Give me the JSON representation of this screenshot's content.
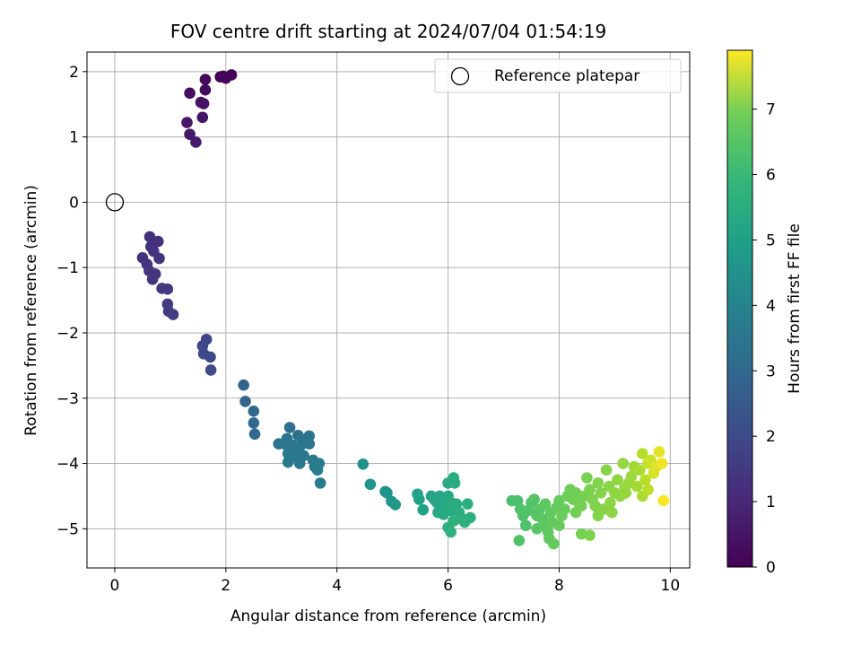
{
  "chart_data": {
    "type": "scatter",
    "title": "FOV centre drift starting at 2024/07/04 01:54:19",
    "xlabel": "Angular distance from reference (arcmin)",
    "ylabel": "Rotation from reference (arcmin)",
    "xlim": [
      -0.5,
      10.35
    ],
    "ylim": [
      -5.6,
      2.3
    ],
    "xticks": [
      0,
      2,
      4,
      6,
      8,
      10
    ],
    "yticks": [
      -5,
      -4,
      -3,
      -2,
      -1,
      0,
      1,
      2
    ],
    "grid": true,
    "legend": {
      "placement": "top-right",
      "entries": [
        "Reference platepar"
      ]
    },
    "reference_point": {
      "name": "Reference platepar",
      "x": 0,
      "y": 0
    },
    "colorbar": {
      "label": "Hours from first FF file",
      "range": [
        0,
        7.9
      ],
      "ticks": [
        0,
        1,
        2,
        3,
        4,
        5,
        6,
        7
      ],
      "colormap": "viridis"
    },
    "series": [
      {
        "color_by": "hours",
        "points": [
          {
            "x": 1.9,
            "y": 1.92,
            "c": 0.02
          },
          {
            "x": 2.0,
            "y": 1.9,
            "c": 0.05
          },
          {
            "x": 2.1,
            "y": 1.95,
            "c": 0.08
          },
          {
            "x": 1.95,
            "y": 1.93,
            "c": 0.1
          },
          {
            "x": 1.63,
            "y": 1.88,
            "c": 0.2
          },
          {
            "x": 1.63,
            "y": 1.72,
            "c": 0.25
          },
          {
            "x": 1.35,
            "y": 1.67,
            "c": 0.3
          },
          {
            "x": 1.55,
            "y": 1.53,
            "c": 0.35
          },
          {
            "x": 1.6,
            "y": 1.51,
            "c": 0.38
          },
          {
            "x": 1.58,
            "y": 1.3,
            "c": 0.42
          },
          {
            "x": 1.3,
            "y": 1.22,
            "c": 0.48
          },
          {
            "x": 1.35,
            "y": 1.04,
            "c": 0.52
          },
          {
            "x": 1.46,
            "y": 0.92,
            "c": 0.58
          },
          {
            "x": 0.63,
            "y": -0.53,
            "c": 1.1
          },
          {
            "x": 0.78,
            "y": -0.6,
            "c": 1.12
          },
          {
            "x": 0.65,
            "y": -0.68,
            "c": 1.14
          },
          {
            "x": 0.7,
            "y": -0.75,
            "c": 1.16
          },
          {
            "x": 0.5,
            "y": -0.85,
            "c": 1.18
          },
          {
            "x": 0.8,
            "y": -0.86,
            "c": 1.2
          },
          {
            "x": 0.58,
            "y": -0.95,
            "c": 1.22
          },
          {
            "x": 0.62,
            "y": -1.05,
            "c": 1.24
          },
          {
            "x": 0.73,
            "y": -1.1,
            "c": 1.26
          },
          {
            "x": 0.68,
            "y": -1.18,
            "c": 1.28
          },
          {
            "x": 0.85,
            "y": -1.32,
            "c": 1.3
          },
          {
            "x": 0.95,
            "y": -1.33,
            "c": 1.32
          },
          {
            "x": 0.95,
            "y": -1.56,
            "c": 1.35
          },
          {
            "x": 0.97,
            "y": -1.67,
            "c": 1.38
          },
          {
            "x": 1.05,
            "y": -1.72,
            "c": 1.4
          },
          {
            "x": 1.65,
            "y": -2.1,
            "c": 1.65
          },
          {
            "x": 1.58,
            "y": -2.2,
            "c": 1.7
          },
          {
            "x": 1.6,
            "y": -2.32,
            "c": 1.72
          },
          {
            "x": 1.72,
            "y": -2.37,
            "c": 1.75
          },
          {
            "x": 1.73,
            "y": -2.57,
            "c": 1.8
          },
          {
            "x": 2.32,
            "y": -2.8,
            "c": 2.5
          },
          {
            "x": 2.35,
            "y": -3.05,
            "c": 2.55
          },
          {
            "x": 2.5,
            "y": -3.2,
            "c": 2.6
          },
          {
            "x": 2.5,
            "y": -3.38,
            "c": 2.65
          },
          {
            "x": 2.52,
            "y": -3.55,
            "c": 2.7
          },
          {
            "x": 3.15,
            "y": -3.45,
            "c": 2.9
          },
          {
            "x": 3.3,
            "y": -3.57,
            "c": 2.95
          },
          {
            "x": 3.5,
            "y": -3.58,
            "c": 3.0
          },
          {
            "x": 3.45,
            "y": -3.63,
            "c": 3.0
          },
          {
            "x": 3.1,
            "y": -3.62,
            "c": 3.02
          },
          {
            "x": 2.95,
            "y": -3.7,
            "c": 3.05
          },
          {
            "x": 3.05,
            "y": -3.7,
            "c": 3.06
          },
          {
            "x": 3.2,
            "y": -3.72,
            "c": 3.08
          },
          {
            "x": 3.35,
            "y": -3.72,
            "c": 3.1
          },
          {
            "x": 3.5,
            "y": -3.7,
            "c": 3.1
          },
          {
            "x": 3.3,
            "y": -3.8,
            "c": 3.12
          },
          {
            "x": 3.12,
            "y": -3.85,
            "c": 3.14
          },
          {
            "x": 3.25,
            "y": -3.9,
            "c": 3.16
          },
          {
            "x": 3.4,
            "y": -3.88,
            "c": 3.18
          },
          {
            "x": 3.57,
            "y": -3.95,
            "c": 3.2
          },
          {
            "x": 3.12,
            "y": -3.98,
            "c": 3.22
          },
          {
            "x": 3.33,
            "y": -4.0,
            "c": 3.24
          },
          {
            "x": 3.6,
            "y": -4.05,
            "c": 3.26
          },
          {
            "x": 3.65,
            "y": -4.1,
            "c": 3.28
          },
          {
            "x": 3.68,
            "y": -4.0,
            "c": 3.3
          },
          {
            "x": 3.7,
            "y": -4.3,
            "c": 3.32
          },
          {
            "x": 4.47,
            "y": -4.01,
            "c": 4.0
          },
          {
            "x": 4.6,
            "y": -4.32,
            "c": 4.05
          },
          {
            "x": 4.87,
            "y": -4.43,
            "c": 4.1
          },
          {
            "x": 4.9,
            "y": -4.45,
            "c": 4.12
          },
          {
            "x": 4.98,
            "y": -4.58,
            "c": 4.15
          },
          {
            "x": 5.05,
            "y": -4.63,
            "c": 4.18
          },
          {
            "x": 5.45,
            "y": -4.47,
            "c": 4.5
          },
          {
            "x": 5.48,
            "y": -4.55,
            "c": 4.52
          },
          {
            "x": 5.55,
            "y": -4.71,
            "c": 4.55
          },
          {
            "x": 5.7,
            "y": -4.5,
            "c": 4.6
          },
          {
            "x": 5.75,
            "y": -4.55,
            "c": 4.62
          },
          {
            "x": 5.8,
            "y": -4.6,
            "c": 4.64
          },
          {
            "x": 5.85,
            "y": -4.5,
            "c": 4.66
          },
          {
            "x": 5.9,
            "y": -4.65,
            "c": 4.68
          },
          {
            "x": 5.95,
            "y": -4.55,
            "c": 4.7
          },
          {
            "x": 6.0,
            "y": -4.5,
            "c": 4.72
          },
          {
            "x": 5.82,
            "y": -4.75,
            "c": 4.74
          },
          {
            "x": 5.92,
            "y": -4.78,
            "c": 4.76
          },
          {
            "x": 6.05,
            "y": -4.72,
            "c": 4.78
          },
          {
            "x": 6.0,
            "y": -4.3,
            "c": 4.8
          },
          {
            "x": 6.1,
            "y": -4.22,
            "c": 4.82
          },
          {
            "x": 6.12,
            "y": -4.3,
            "c": 4.84
          },
          {
            "x": 6.05,
            "y": -4.6,
            "c": 4.86
          },
          {
            "x": 6.15,
            "y": -4.62,
            "c": 4.88
          },
          {
            "x": 6.2,
            "y": -4.75,
            "c": 4.9
          },
          {
            "x": 6.25,
            "y": -4.85,
            "c": 4.92
          },
          {
            "x": 6.35,
            "y": -4.62,
            "c": 4.94
          },
          {
            "x": 6.4,
            "y": -4.83,
            "c": 4.96
          },
          {
            "x": 6.3,
            "y": -4.9,
            "c": 4.98
          },
          {
            "x": 6.0,
            "y": -4.98,
            "c": 5.0
          },
          {
            "x": 6.05,
            "y": -5.05,
            "c": 5.02
          },
          {
            "x": 6.1,
            "y": -4.88,
            "c": 5.04
          },
          {
            "x": 7.15,
            "y": -4.57,
            "c": 5.6
          },
          {
            "x": 7.25,
            "y": -4.57,
            "c": 5.62
          },
          {
            "x": 7.3,
            "y": -4.7,
            "c": 5.64
          },
          {
            "x": 7.35,
            "y": -4.8,
            "c": 5.66
          },
          {
            "x": 7.28,
            "y": -5.18,
            "c": 5.68
          },
          {
            "x": 7.4,
            "y": -4.95,
            "c": 5.7
          },
          {
            "x": 7.45,
            "y": -4.72,
            "c": 5.72
          },
          {
            "x": 7.5,
            "y": -4.6,
            "c": 5.74
          },
          {
            "x": 7.55,
            "y": -4.55,
            "c": 5.76
          },
          {
            "x": 7.6,
            "y": -4.8,
            "c": 5.78
          },
          {
            "x": 7.6,
            "y": -5.0,
            "c": 5.8
          },
          {
            "x": 7.65,
            "y": -4.7,
            "c": 5.82
          },
          {
            "x": 7.7,
            "y": -4.85,
            "c": 5.84
          },
          {
            "x": 7.72,
            "y": -4.95,
            "c": 5.86
          },
          {
            "x": 7.75,
            "y": -4.62,
            "c": 5.88
          },
          {
            "x": 7.8,
            "y": -5.05,
            "c": 5.9
          },
          {
            "x": 7.82,
            "y": -5.15,
            "c": 5.92
          },
          {
            "x": 7.85,
            "y": -4.75,
            "c": 5.94
          },
          {
            "x": 7.88,
            "y": -4.9,
            "c": 5.96
          },
          {
            "x": 7.9,
            "y": -5.23,
            "c": 5.98
          },
          {
            "x": 7.95,
            "y": -4.68,
            "c": 6.0
          },
          {
            "x": 8.0,
            "y": -4.57,
            "c": 6.02
          },
          {
            "x": 8.0,
            "y": -4.95,
            "c": 6.04
          },
          {
            "x": 8.05,
            "y": -4.8,
            "c": 6.06
          },
          {
            "x": 8.1,
            "y": -4.7,
            "c": 6.08
          },
          {
            "x": 8.15,
            "y": -4.5,
            "c": 6.1
          },
          {
            "x": 8.2,
            "y": -4.4,
            "c": 6.12
          },
          {
            "x": 8.25,
            "y": -4.55,
            "c": 6.14
          },
          {
            "x": 8.3,
            "y": -4.45,
            "c": 6.16
          },
          {
            "x": 8.3,
            "y": -4.75,
            "c": 6.18
          },
          {
            "x": 8.35,
            "y": -4.6,
            "c": 6.2
          },
          {
            "x": 8.4,
            "y": -4.65,
            "c": 6.22
          },
          {
            "x": 8.4,
            "y": -5.08,
            "c": 6.24
          },
          {
            "x": 8.45,
            "y": -4.5,
            "c": 6.26
          },
          {
            "x": 8.5,
            "y": -4.22,
            "c": 6.28
          },
          {
            "x": 8.55,
            "y": -4.4,
            "c": 6.3
          },
          {
            "x": 8.55,
            "y": -5.1,
            "c": 6.32
          },
          {
            "x": 8.6,
            "y": -4.55,
            "c": 6.34
          },
          {
            "x": 8.65,
            "y": -4.65,
            "c": 6.36
          },
          {
            "x": 8.7,
            "y": -4.3,
            "c": 6.38
          },
          {
            "x": 8.7,
            "y": -4.8,
            "c": 6.4
          },
          {
            "x": 8.75,
            "y": -4.45,
            "c": 6.42
          },
          {
            "x": 8.8,
            "y": -4.7,
            "c": 6.44
          },
          {
            "x": 8.85,
            "y": -4.1,
            "c": 6.46
          },
          {
            "x": 8.9,
            "y": -4.35,
            "c": 6.48
          },
          {
            "x": 8.92,
            "y": -4.6,
            "c": 6.5
          },
          {
            "x": 8.95,
            "y": -4.75,
            "c": 6.52
          },
          {
            "x": 9.0,
            "y": -4.45,
            "c": 6.54
          },
          {
            "x": 9.05,
            "y": -4.25,
            "c": 6.56
          },
          {
            "x": 9.1,
            "y": -4.5,
            "c": 6.58
          },
          {
            "x": 9.15,
            "y": -4.0,
            "c": 6.6
          },
          {
            "x": 9.18,
            "y": -4.38,
            "c": 6.62
          },
          {
            "x": 9.2,
            "y": -4.45,
            "c": 6.64
          },
          {
            "x": 9.25,
            "y": -4.3,
            "c": 6.66
          },
          {
            "x": 9.3,
            "y": -4.2,
            "c": 6.7
          },
          {
            "x": 9.35,
            "y": -4.05,
            "c": 6.75
          },
          {
            "x": 9.4,
            "y": -4.35,
            "c": 6.8
          },
          {
            "x": 9.45,
            "y": -4.1,
            "c": 6.85
          },
          {
            "x": 9.5,
            "y": -4.5,
            "c": 6.9
          },
          {
            "x": 9.5,
            "y": -3.85,
            "c": 7.0
          },
          {
            "x": 9.55,
            "y": -4.25,
            "c": 7.05
          },
          {
            "x": 9.6,
            "y": -4.4,
            "c": 7.1
          },
          {
            "x": 9.6,
            "y": -4.0,
            "c": 7.2
          },
          {
            "x": 9.65,
            "y": -3.95,
            "c": 7.3
          },
          {
            "x": 9.7,
            "y": -4.15,
            "c": 7.4
          },
          {
            "x": 9.75,
            "y": -4.05,
            "c": 7.5
          },
          {
            "x": 9.8,
            "y": -3.82,
            "c": 7.6
          },
          {
            "x": 9.85,
            "y": -4.0,
            "c": 7.7
          },
          {
            "x": 9.88,
            "y": -4.57,
            "c": 7.8
          }
        ]
      }
    ]
  }
}
